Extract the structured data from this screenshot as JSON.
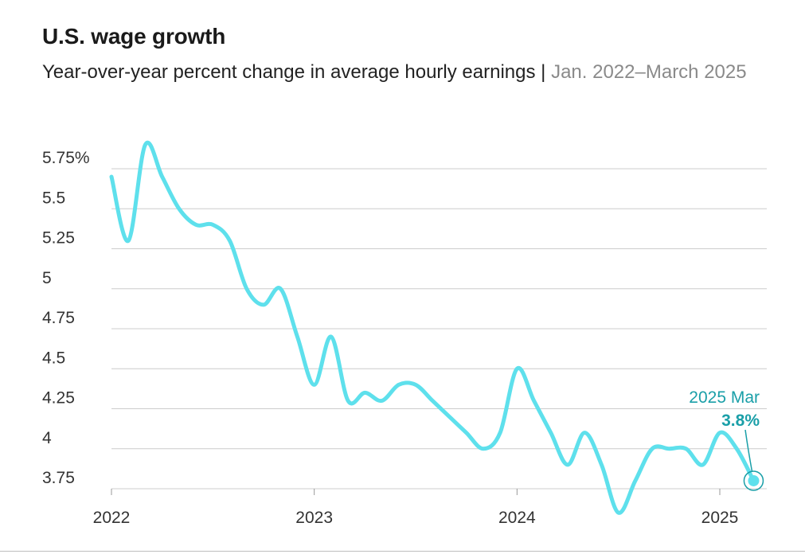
{
  "title": "U.S. wage growth",
  "subtitle": {
    "main": "Year-over-year percent change in average hourly earnings",
    "separator": "|",
    "date_range": "Jan. 2022–March 2025"
  },
  "annotation": {
    "label": "2025 Mar",
    "value": "3.8%"
  },
  "colors": {
    "line": "#5ee0ec",
    "annotation": "#1a9fa8",
    "grid": "#cccccc",
    "text": "#333333"
  },
  "chart_data": {
    "type": "line",
    "title": "U.S. wage growth",
    "subtitle": "Year-over-year percent change in average hourly earnings | Jan. 2022–March 2025",
    "xlabel": "",
    "ylabel": "",
    "ylim": [
      3.75,
      5.75
    ],
    "y_ticks": [
      3.75,
      4,
      4.25,
      4.5,
      4.75,
      5,
      5.25,
      5.5,
      5.75
    ],
    "y_tick_labels": [
      "3.75",
      "4",
      "4.25",
      "4.5",
      "4.75",
      "5",
      "5.25",
      "5.5",
      "5.75%"
    ],
    "x_ticks": [
      2022,
      2023,
      2024,
      2025
    ],
    "x_tick_labels": [
      "2022",
      "2023",
      "2024",
      "2025"
    ],
    "grid": "horizontal",
    "legend": "none",
    "series": [
      {
        "x": [
          "2022-01",
          "2022-02",
          "2022-03",
          "2022-04",
          "2022-05",
          "2022-06",
          "2022-07",
          "2022-08",
          "2022-09",
          "2022-10",
          "2022-11",
          "2022-12",
          "2023-01",
          "2023-02",
          "2023-03",
          "2023-04",
          "2023-05",
          "2023-06",
          "2023-07",
          "2023-08",
          "2023-09",
          "2023-10",
          "2023-11",
          "2023-12",
          "2024-01",
          "2024-02",
          "2024-03",
          "2024-04",
          "2024-05",
          "2024-06",
          "2024-07",
          "2024-08",
          "2024-09",
          "2024-10",
          "2024-11",
          "2024-12",
          "2025-01",
          "2025-02",
          "2025-03"
        ],
        "values": [
          5.7,
          5.3,
          5.9,
          5.7,
          5.5,
          5.4,
          5.4,
          5.3,
          5.0,
          4.9,
          5.0,
          4.7,
          4.4,
          4.7,
          4.3,
          4.35,
          4.3,
          4.4,
          4.4,
          4.3,
          4.2,
          4.1,
          4.0,
          4.1,
          4.5,
          4.3,
          4.1,
          3.9,
          4.1,
          3.9,
          3.6,
          3.8,
          4.0,
          4.0,
          4.0,
          3.9,
          4.1,
          4.0,
          3.8
        ]
      }
    ]
  }
}
